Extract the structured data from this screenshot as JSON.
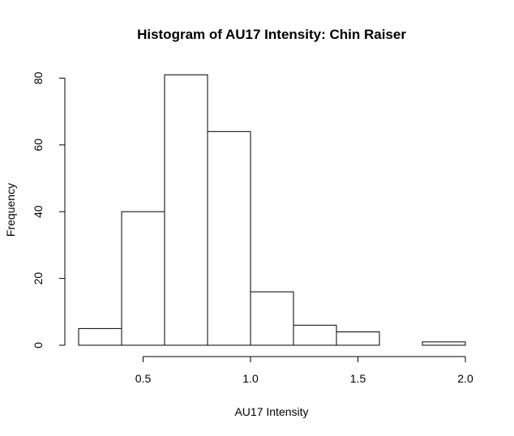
{
  "chart_data": {
    "type": "bar",
    "title": "Histogram of AU17 Intensity: Chin Raiser",
    "xlabel": "AU17 Intensity",
    "ylabel": "Frequency",
    "bins": [
      {
        "start": 0.2,
        "end": 0.4,
        "count": 5
      },
      {
        "start": 0.4,
        "end": 0.6,
        "count": 40
      },
      {
        "start": 0.6,
        "end": 0.8,
        "count": 81
      },
      {
        "start": 0.8,
        "end": 1.0,
        "count": 64
      },
      {
        "start": 1.0,
        "end": 1.2,
        "count": 16
      },
      {
        "start": 1.2,
        "end": 1.4,
        "count": 6
      },
      {
        "start": 1.4,
        "end": 1.6,
        "count": 4
      },
      {
        "start": 1.6,
        "end": 1.8,
        "count": 0
      },
      {
        "start": 1.8,
        "end": 2.0,
        "count": 1
      }
    ],
    "x_ticks": [
      "0.5",
      "1.0",
      "1.5",
      "2.0"
    ],
    "y_ticks": [
      "0",
      "20",
      "40",
      "60",
      "80"
    ],
    "xlim": [
      0.2,
      2.0
    ],
    "ylim": [
      0,
      81
    ],
    "grid": false,
    "legend": "none"
  }
}
